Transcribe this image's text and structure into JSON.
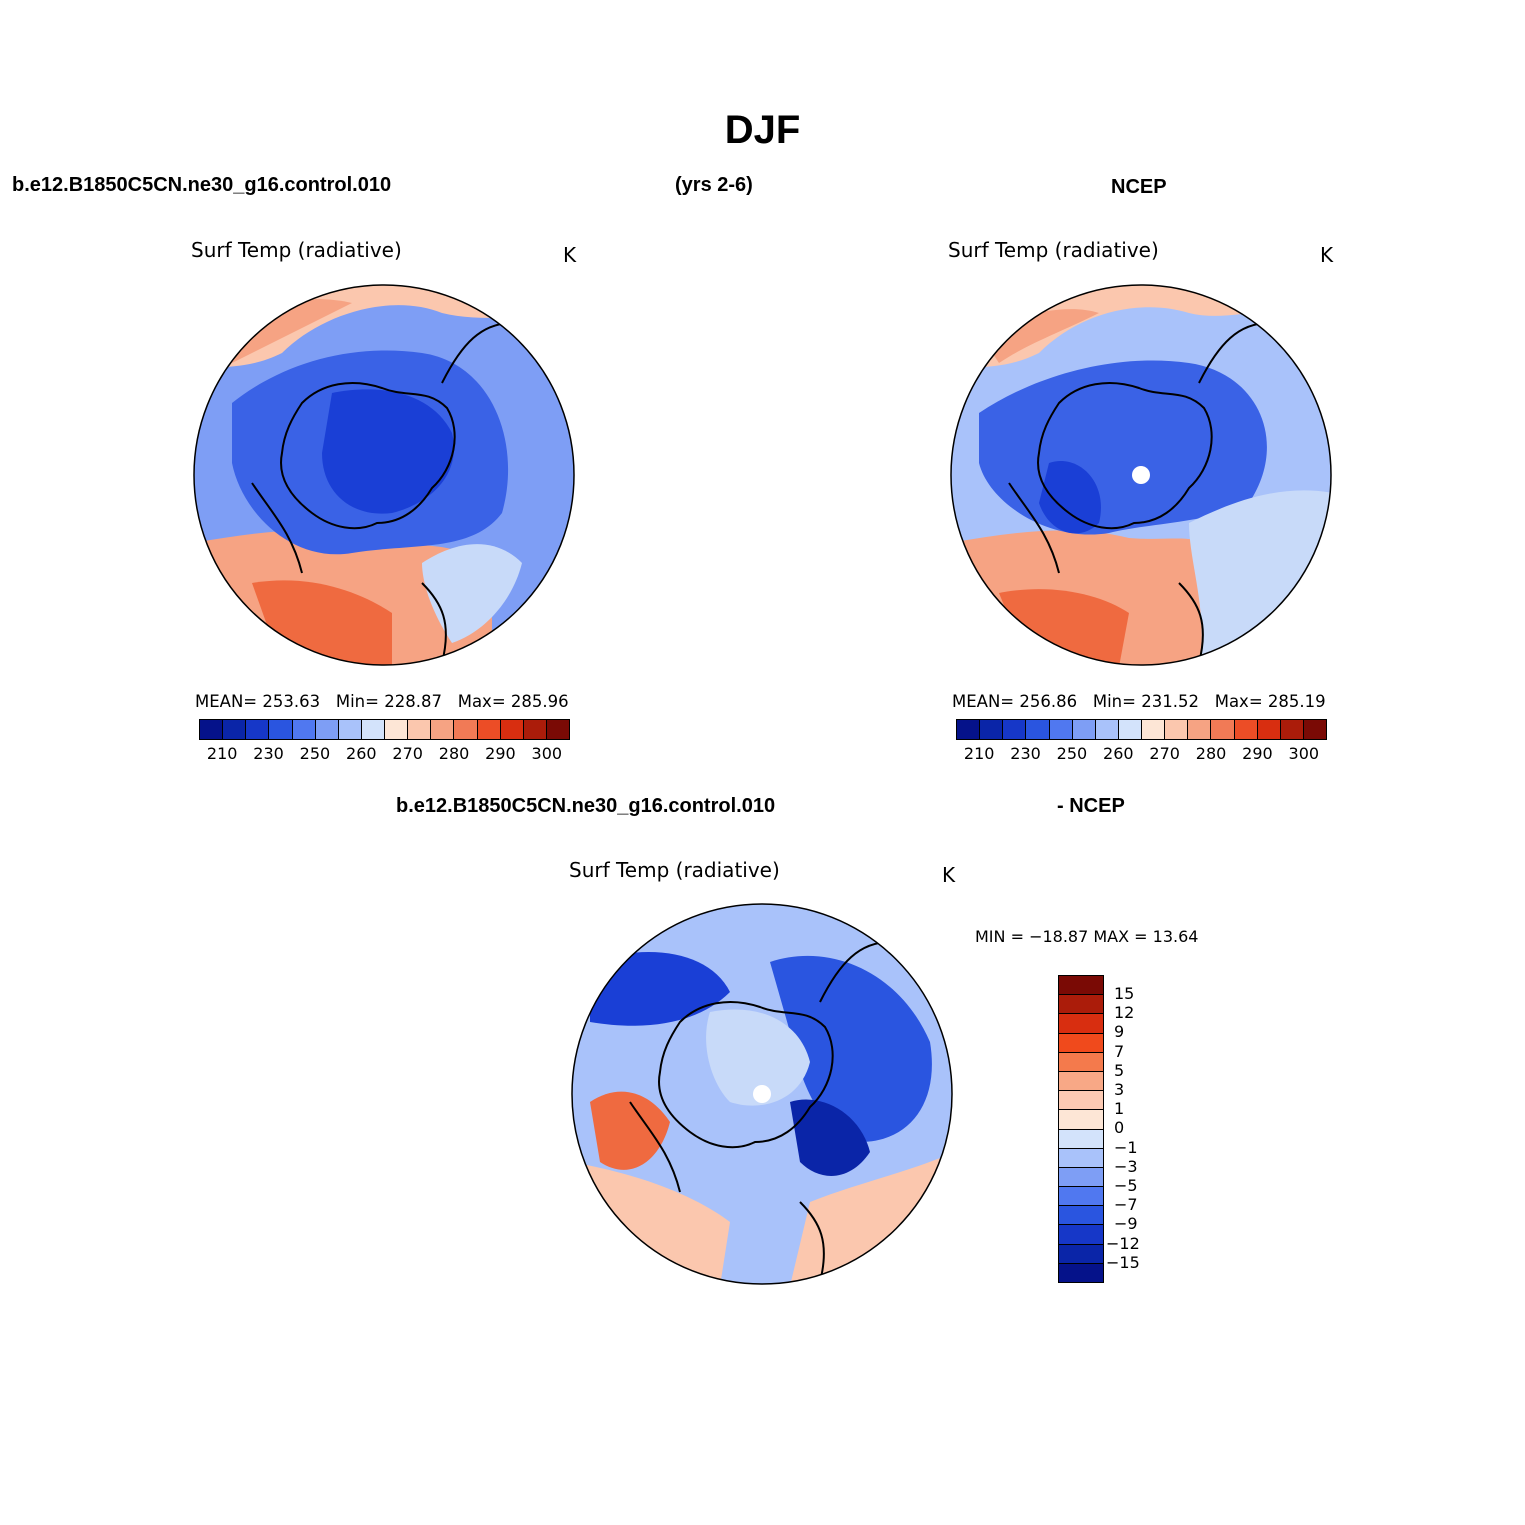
{
  "title": "DJF",
  "header": {
    "case": "b.e12.B1850C5CN.ne30_g16.control.010",
    "years": "(yrs 2-6)",
    "obs": "NCEP"
  },
  "diff_header": {
    "case": "b.e12.B1850C5CN.ne30_g16.control.010",
    "obs": "- NCEP"
  },
  "panels": [
    {
      "id": "model",
      "title": "Surf Temp (radiative)",
      "units": "K",
      "stats": {
        "mean_label": "MEAN=",
        "mean": "253.63",
        "min_label": "Min=",
        "min": "228.87",
        "max_label": "Max=",
        "max": "285.96"
      }
    },
    {
      "id": "obs",
      "title": "Surf Temp (radiative)",
      "units": "K",
      "stats": {
        "mean_label": "MEAN=",
        "mean": "256.86",
        "min_label": "Min=",
        "min": "231.52",
        "max_label": "Max=",
        "max": "285.19"
      }
    },
    {
      "id": "diff",
      "title": "Surf Temp (radiative)",
      "units": "K",
      "stats": {
        "text": "MIN = −18.87 MAX =   13.64"
      }
    }
  ],
  "colorbar_abs": {
    "colors": [
      "#05128a",
      "#0a25a8",
      "#1637c8",
      "#2a55e0",
      "#5078f0",
      "#7e9ef5",
      "#a9c2fa",
      "#d3e3fb",
      "#fde6d6",
      "#fbc7ae",
      "#f6a383",
      "#f17a56",
      "#ec4d26",
      "#d82e10",
      "#ab1c0a",
      "#7a0a05"
    ],
    "labels": [
      "210",
      "230",
      "250",
      "260",
      "270",
      "280",
      "290",
      "300"
    ]
  },
  "colorbar_diff": {
    "colors": [
      "#7a0a05",
      "#ab1c0a",
      "#d82e10",
      "#f04a1c",
      "#f47a4c",
      "#f8a886",
      "#fccab3",
      "#fde6d6",
      "#d3e3fb",
      "#a9c2fa",
      "#7e9ef5",
      "#5078f0",
      "#2a55e0",
      "#1637c8",
      "#0a25a8",
      "#05128a"
    ],
    "labels": [
      "15",
      "12",
      "9",
      "7",
      "5",
      "3",
      "1",
      "0",
      "−1",
      "−3",
      "−5",
      "−7",
      "−9",
      "−12",
      "−15"
    ]
  },
  "map_colors": {
    "deep_blue": "#1a3fd6",
    "mid_blue": "#3a62e6",
    "light_blue": "#7e9ef5",
    "pale_blue": "#c8daf9",
    "pale_orange": "#fbc7ae",
    "orange": "#f6a383",
    "dark_orange": "#ef6a40",
    "coast": "#000000",
    "pole_mask": "#ffffff"
  }
}
